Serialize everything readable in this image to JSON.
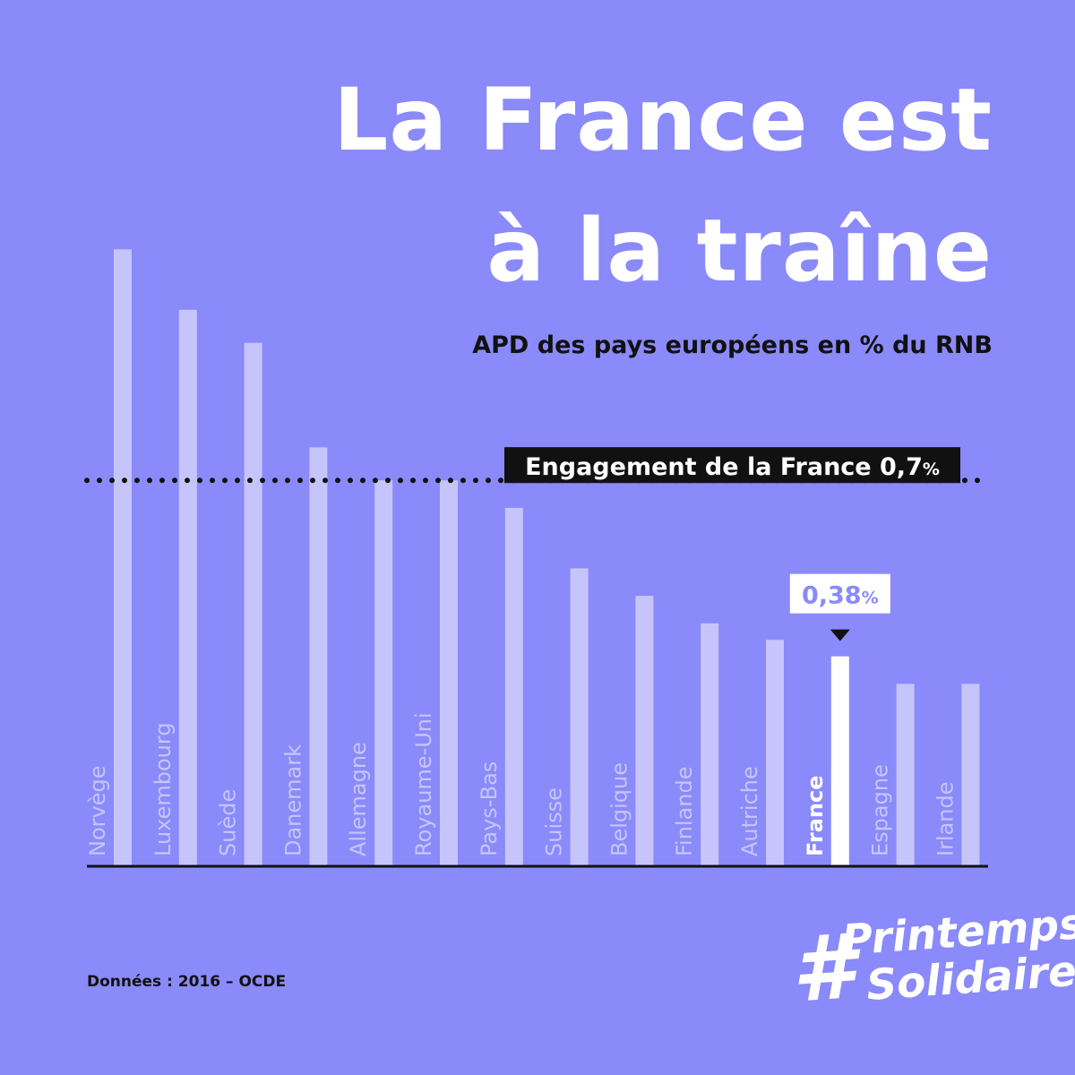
{
  "header": {
    "title_line1": "La France est",
    "title_line2": "à la traîne",
    "subtitle": "APD des pays européens en % du RNB"
  },
  "chart_data": {
    "type": "bar",
    "title": "La France est à la traîne",
    "subtitle": "APD des pays européens en % du RNB",
    "ylabel": "% du RNB",
    "ylim": [
      0,
      1.16
    ],
    "categories": [
      "Norvège",
      "Luxembourg",
      "Suède",
      "Danemark",
      "Allemagne",
      "Royaume-Uni",
      "Pays-Bas",
      "Suisse",
      "Belgique",
      "Finlande",
      "Autriche",
      "France",
      "Espagne",
      "Irlande"
    ],
    "values": [
      1.12,
      1.01,
      0.95,
      0.76,
      0.7,
      0.7,
      0.65,
      0.54,
      0.49,
      0.44,
      0.41,
      0.38,
      0.33,
      0.33
    ],
    "highlight": "France",
    "reference_line": {
      "value": 0.7,
      "label": "Engagement de la France ",
      "value_label": "0,7",
      "value_unit": "%"
    },
    "highlight_label": {
      "value": "0,38",
      "unit": "%"
    },
    "colors": {
      "background": "#8a8afa",
      "bar": "#c5c5fc",
      "highlight_bar": "#ffffff",
      "ink": "#111111"
    }
  },
  "footer": {
    "source": "Données : 2016 – OCDE",
    "logo_hash": "#",
    "logo_line1": "Printemps",
    "logo_line2": "Solidaire"
  }
}
